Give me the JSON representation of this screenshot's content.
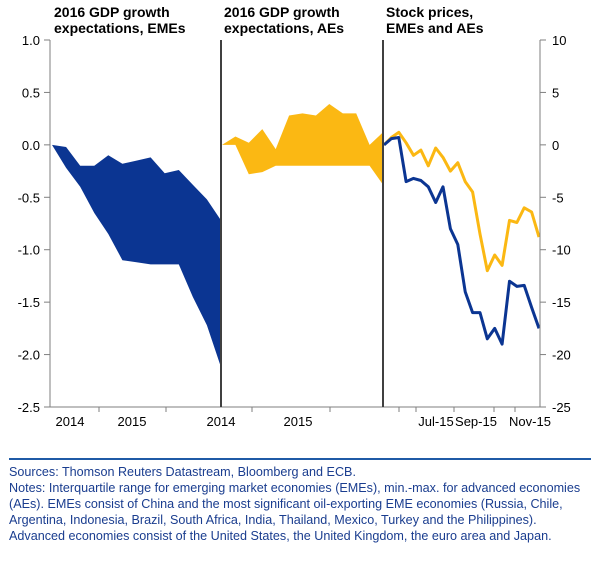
{
  "chart_data": [
    {
      "type": "area",
      "title": "2016 GDP growth expectations, EMEs",
      "ylim": [
        -2.5,
        1.0
      ],
      "yticks": [
        "1.0",
        "0.5",
        "0.0",
        "-0.5",
        "-1.0",
        "-1.5",
        "-2.0",
        "-2.5"
      ],
      "xticks": [
        "2014",
        "2015"
      ],
      "color": "#0b3592",
      "series": [
        {
          "t": [
            0,
            2,
            4,
            6,
            8,
            10,
            12,
            14,
            16,
            18,
            20,
            22,
            24
          ],
          "max": [
            0.0,
            -0.02,
            -0.2,
            -0.2,
            -0.1,
            -0.18,
            -0.15,
            -0.12,
            -0.27,
            -0.24,
            -0.38,
            -0.52,
            -0.72
          ],
          "min": [
            0.0,
            -0.22,
            -0.4,
            -0.65,
            -0.85,
            -1.1,
            -1.12,
            -1.14,
            -1.14,
            -1.14,
            -1.45,
            -1.72,
            -2.12
          ]
        }
      ]
    },
    {
      "type": "area",
      "title": "2016 GDP growth expectations, AEs",
      "xticks": [
        "2014",
        "2015"
      ],
      "color": "#fbb813",
      "series": [
        {
          "t": [
            0,
            2,
            4,
            6,
            8,
            10,
            12,
            14,
            16,
            18,
            20,
            22,
            24
          ],
          "max": [
            0.0,
            0.08,
            0.02,
            0.15,
            -0.04,
            0.28,
            0.3,
            0.28,
            0.39,
            0.3,
            0.3,
            0.0,
            0.12
          ],
          "min": [
            0.0,
            0.0,
            -0.28,
            -0.26,
            -0.2,
            -0.2,
            -0.2,
            -0.2,
            -0.2,
            -0.2,
            -0.2,
            -0.2,
            -0.38
          ]
        }
      ]
    },
    {
      "type": "line",
      "title": "Stock prices, EMEs and AEs",
      "ylim": [
        -25,
        10
      ],
      "yticks": [
        "10",
        "5",
        "0",
        "-5",
        "-10",
        "-15",
        "-20",
        "-25"
      ],
      "xticks": [
        "Jul-15",
        "Sep-15",
        "Nov-15"
      ],
      "series": [
        {
          "color": "#fbb813",
          "values": [
            0,
            0.7,
            1.2,
            0.2,
            -1.0,
            -0.5,
            -2.0,
            -0.3,
            -1.2,
            -2.5,
            -1.7,
            -3.5,
            -4.5,
            -8.5,
            -12.0,
            -10.5,
            -11.5,
            -7.2,
            -7.4,
            -6.0,
            -6.4,
            -8.8
          ]
        },
        {
          "color": "#0b3592",
          "values": [
            0,
            0.6,
            0.7,
            -3.5,
            -3.2,
            -3.4,
            -4.0,
            -5.5,
            -4.0,
            -8.0,
            -9.5,
            -14.0,
            -16.0,
            -16.0,
            -18.5,
            -17.5,
            -19.0,
            -13.0,
            -13.5,
            -13.4,
            -15.5,
            -17.5
          ]
        }
      ]
    }
  ],
  "notes": {
    "sources": "Sources: Thomson Reuters Datastream, Bloomberg and ECB.",
    "notes": "Notes: Interquartile range for emerging market economies (EMEs), min.-max. for advanced economies (AEs). EMEs consist of China and the most significant oil-exporting EME economies (Russia, Chile, Argentina, Indonesia, Brazil, South Africa, India, Thailand, Mexico, Turkey and the Philippines). Advanced economies consist of the United States, the United Kingdom, the euro area and Japan."
  }
}
